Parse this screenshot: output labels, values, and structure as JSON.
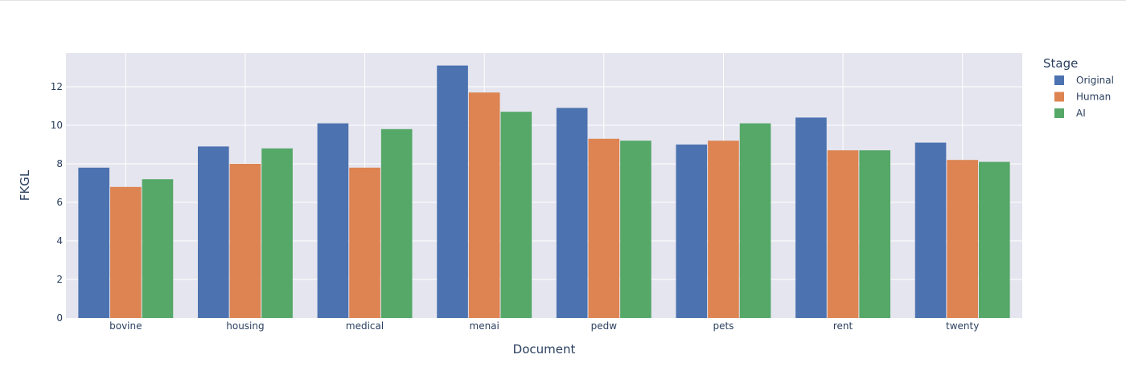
{
  "chart_data": {
    "type": "bar",
    "title": "",
    "xlabel": "Document",
    "ylabel": "FKGL",
    "ylim": [
      0,
      13.75
    ],
    "yticks": [
      0,
      2,
      4,
      6,
      8,
      10,
      12
    ],
    "grid": true,
    "legend_title": "Stage",
    "legend_position": "right",
    "categories": [
      "bovine",
      "housing",
      "medical",
      "menai",
      "pedw",
      "pets",
      "rent",
      "twenty"
    ],
    "series": [
      {
        "name": "Original",
        "color": "#4c72b0",
        "values": [
          7.8,
          8.9,
          10.1,
          13.1,
          10.9,
          9.0,
          10.4,
          9.1
        ]
      },
      {
        "name": "Human",
        "color": "#dd8452",
        "values": [
          6.8,
          8.0,
          7.8,
          11.7,
          9.3,
          9.2,
          8.7,
          8.2
        ]
      },
      {
        "name": "AI",
        "color": "#55a868",
        "values": [
          7.2,
          8.8,
          9.8,
          10.7,
          9.2,
          10.1,
          8.7,
          8.1
        ]
      }
    ],
    "plot_background": "#e5e5ef",
    "grid_color": "#ffffff"
  }
}
